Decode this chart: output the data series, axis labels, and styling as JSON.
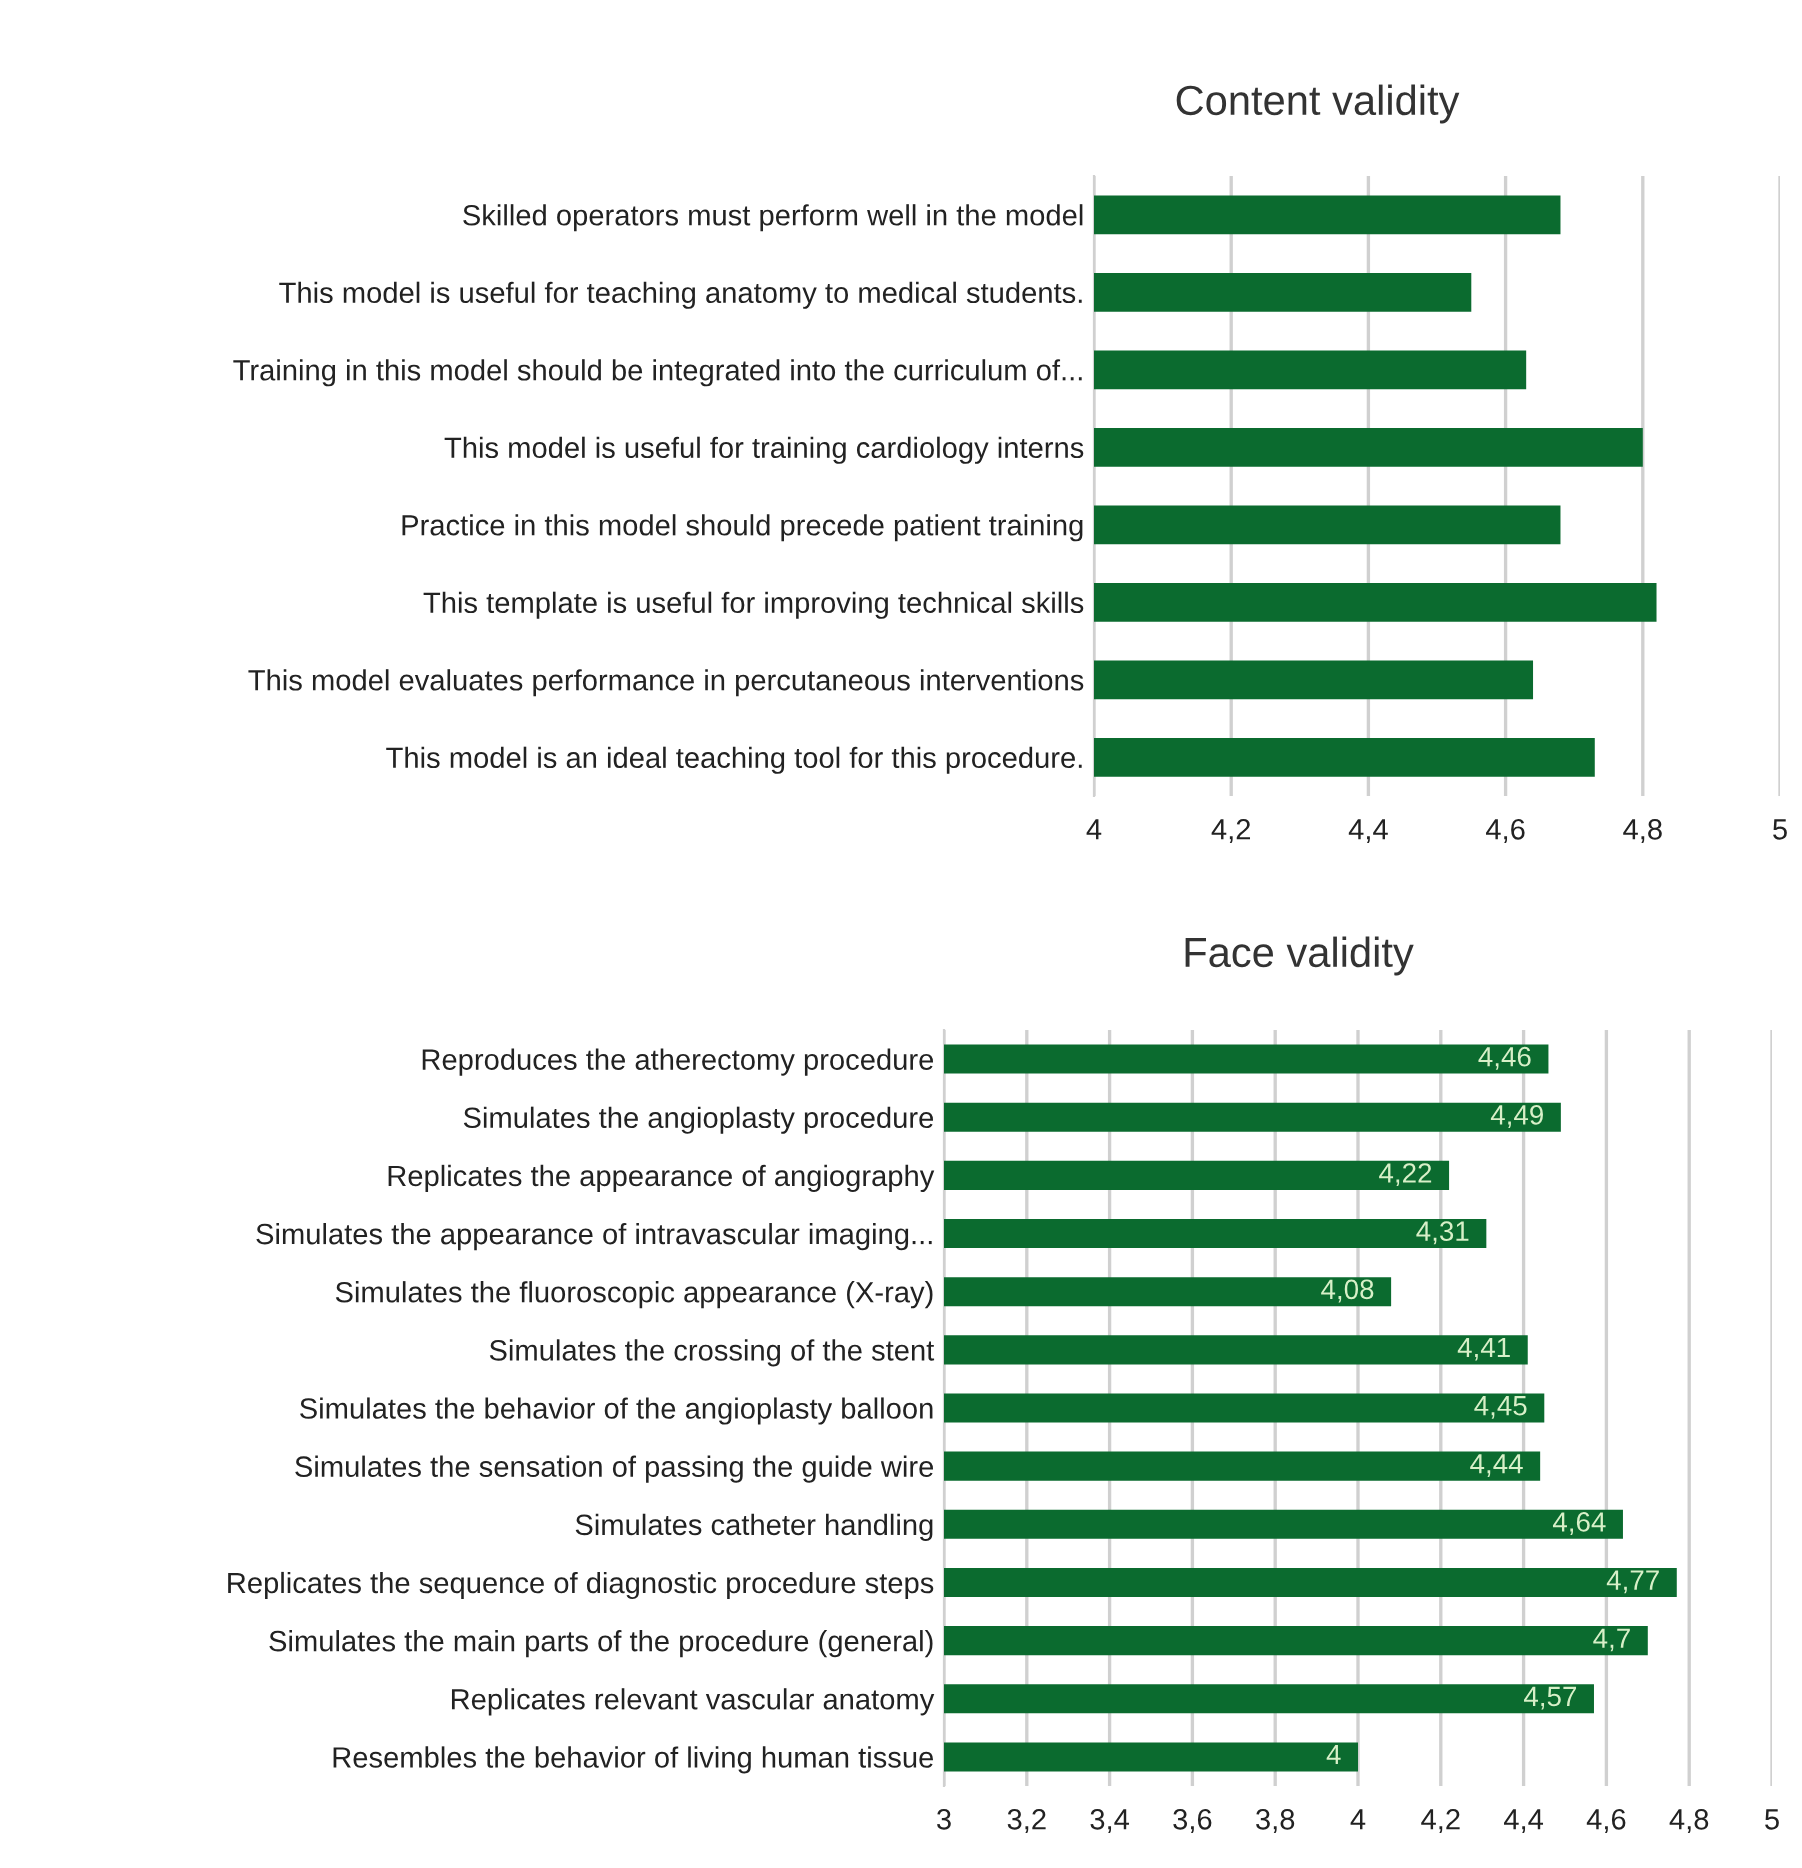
{
  "chart_data": [
    {
      "type": "bar",
      "orientation": "horizontal",
      "title": "Content validity",
      "categories": [
        "Skilled operators must perform well in the model",
        "This model is useful for teaching anatomy to medical students.",
        "Training in this model should be integrated into the curriculum of...",
        "This model is useful for training cardiology interns",
        "Practice in this model should precede patient training",
        "This template is useful for improving technical skills",
        "This model evaluates performance in percutaneous interventions",
        "This model is an ideal teaching tool for this procedure."
      ],
      "values": [
        4.68,
        4.55,
        4.63,
        4.8,
        4.68,
        4.82,
        4.64,
        4.73
      ],
      "color": "#0b6b2f",
      "xlim": [
        4,
        5
      ],
      "xticks": [
        4,
        {
          "value": 4.2,
          "label": "4,2"
        },
        {
          "value": 4.4,
          "label": "4,4"
        },
        {
          "value": 4.6,
          "label": "4,6"
        },
        {
          "value": 4.8,
          "label": "4,8"
        },
        5
      ],
      "grid": "x"
    },
    {
      "type": "bar",
      "orientation": "horizontal",
      "title": "Face validity",
      "categories": [
        "Reproduces the atherectomy procedure",
        "Simulates the angioplasty procedure",
        "Replicates the appearance of angiography",
        "Simulates the appearance of intravascular imaging...",
        "Simulates the fluoroscopic appearance (X-ray)",
        "Simulates the crossing of the stent",
        "Simulates the behavior of the angioplasty balloon",
        "Simulates the sensation of passing the guide wire",
        "Simulates catheter handling",
        "Replicates the sequence of diagnostic procedure steps",
        "Simulates the main parts of the procedure (general)",
        "Replicates relevant vascular anatomy",
        "Resembles the behavior of living human tissue"
      ],
      "values": [
        4.46,
        4.49,
        4.22,
        4.31,
        4.08,
        4.41,
        4.45,
        4.44,
        4.64,
        4.77,
        4.7,
        4.57,
        4
      ],
      "value_labels": [
        "4,46",
        "4,49",
        "4,22",
        "4,31",
        "4,08",
        "4,41",
        "4,45",
        "4,44",
        "4,64",
        "4,77",
        "4,7",
        "4,57",
        "4"
      ],
      "color": "#0b6b2f",
      "xlim": [
        3,
        5
      ],
      "xticks": [
        3,
        {
          "value": 3.2,
          "label": "3,2"
        },
        {
          "value": 3.4,
          "label": "3,4"
        },
        {
          "value": 3.6,
          "label": "3,6"
        },
        {
          "value": 3.8,
          "label": "3,8"
        },
        4,
        {
          "value": 4.2,
          "label": "4,2"
        },
        {
          "value": 4.4,
          "label": "4,4"
        },
        {
          "value": 4.6,
          "label": "4,6"
        },
        {
          "value": 4.8,
          "label": "4,8"
        },
        5
      ],
      "grid": "x"
    }
  ]
}
